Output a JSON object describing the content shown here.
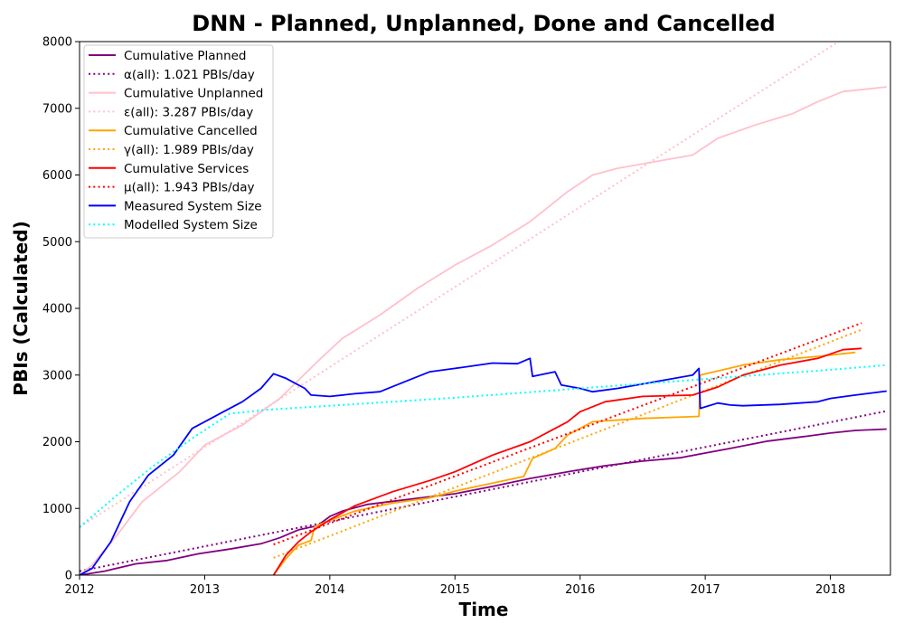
{
  "chart_data": {
    "type": "line",
    "title": "DNN - Planned, Unplanned, Done  and Cancelled",
    "xlabel": "Time",
    "ylabel": "PBIs (Calculated)",
    "xlim": [
      2012.0,
      2018.48
    ],
    "ylim": [
      0,
      8000
    ],
    "xticks": [
      2012,
      2013,
      2014,
      2015,
      2016,
      2017,
      2018
    ],
    "yticks": [
      0,
      1000,
      2000,
      3000,
      4000,
      5000,
      6000,
      7000,
      8000
    ],
    "legend_position": "top-left",
    "series": [
      {
        "name": "Cumulative Planned",
        "color": "#800080",
        "style": "solid",
        "x": [
          2012.0,
          2012.2,
          2012.45,
          2012.7,
          2012.95,
          2013.2,
          2013.45,
          2013.6,
          2013.75,
          2013.9,
          2014.0,
          2014.1,
          2014.3,
          2014.6,
          2015.0,
          2015.3,
          2015.6,
          2015.9,
          2016.2,
          2016.5,
          2016.8,
          2017.0,
          2017.2,
          2017.5,
          2017.8,
          2018.0,
          2018.2,
          2018.45
        ],
        "y": [
          0,
          60,
          170,
          220,
          320,
          390,
          470,
          560,
          680,
          740,
          880,
          960,
          1060,
          1130,
          1220,
          1330,
          1450,
          1550,
          1640,
          1710,
          1760,
          1830,
          1900,
          2010,
          2080,
          2130,
          2170,
          2190
        ]
      },
      {
        "name": "α(all): 1.021 PBIs/day",
        "color": "#800080",
        "style": "dotted",
        "x": [
          2012.0,
          2018.45
        ],
        "y": [
          60,
          2460
        ]
      },
      {
        "name": "Cumulative Unplanned",
        "color": "#ffc0cb",
        "style": "solid",
        "x": [
          2012.0,
          2012.1,
          2012.3,
          2012.5,
          2012.8,
          2013.0,
          2013.3,
          2013.6,
          2013.9,
          2014.1,
          2014.4,
          2014.7,
          2015.0,
          2015.3,
          2015.6,
          2015.9,
          2016.1,
          2016.3,
          2016.6,
          2016.9,
          2017.1,
          2017.4,
          2017.7,
          2017.9,
          2018.1,
          2018.45
        ],
        "y": [
          0,
          150,
          600,
          1100,
          1550,
          1950,
          2250,
          2650,
          3200,
          3550,
          3900,
          4300,
          4650,
          4950,
          5300,
          5750,
          6000,
          6100,
          6200,
          6300,
          6550,
          6750,
          6920,
          7100,
          7250,
          7320
        ]
      },
      {
        "name": "ε(all): 3.287 PBIs/day",
        "color": "#ffc0cb",
        "style": "dotted",
        "x": [
          2012.0,
          2018.15
        ],
        "y": [
          720,
          8100
        ]
      },
      {
        "name": "Cumulative Cancelled",
        "color": "#ffa500",
        "style": "solid",
        "x": [
          2013.55,
          2013.65,
          2013.75,
          2013.85,
          2013.88,
          2014.0,
          2014.2,
          2014.5,
          2014.8,
          2015.0,
          2015.3,
          2015.55,
          2015.62,
          2015.8,
          2015.9,
          2016.1,
          2016.5,
          2016.95,
          2016.96,
          2017.1,
          2017.3,
          2017.6,
          2017.9,
          2018.2
        ],
        "y": [
          0,
          250,
          450,
          520,
          730,
          820,
          960,
          1080,
          1160,
          1260,
          1380,
          1480,
          1750,
          1900,
          2100,
          2300,
          2350,
          2380,
          3000,
          3060,
          3150,
          3230,
          3280,
          3340
        ]
      },
      {
        "name": "γ(all): 1.989 PBIs/day",
        "color": "#ffa500",
        "style": "dotted",
        "x": [
          2013.55,
          2018.25
        ],
        "y": [
          260,
          3680
        ]
      },
      {
        "name": "Cumulative Services",
        "color": "#ff0000",
        "style": "solid",
        "x": [
          2013.55,
          2013.65,
          2013.75,
          2013.85,
          2014.0,
          2014.2,
          2014.5,
          2014.8,
          2015.0,
          2015.3,
          2015.6,
          2015.75,
          2015.9,
          2016.0,
          2016.2,
          2016.5,
          2016.9,
          2017.1,
          2017.3,
          2017.6,
          2017.9,
          2018.1,
          2018.25
        ],
        "y": [
          0,
          300,
          500,
          650,
          830,
          1040,
          1250,
          1420,
          1550,
          1800,
          2000,
          2150,
          2300,
          2450,
          2600,
          2680,
          2700,
          2820,
          3000,
          3150,
          3250,
          3380,
          3400
        ]
      },
      {
        "name": "μ(all): 1.943 PBIs/day",
        "color": "#ff0000",
        "style": "dotted",
        "x": [
          2013.55,
          2018.25
        ],
        "y": [
          460,
          3780
        ]
      },
      {
        "name": "Measured System Size",
        "color": "#0000ff",
        "style": "solid",
        "x": [
          2012.0,
          2012.1,
          2012.25,
          2012.4,
          2012.55,
          2012.75,
          2012.9,
          2013.0,
          2013.15,
          2013.3,
          2013.45,
          2013.55,
          2013.65,
          2013.8,
          2013.85,
          2014.0,
          2014.2,
          2014.4,
          2014.6,
          2014.8,
          2015.0,
          2015.3,
          2015.5,
          2015.6,
          2015.62,
          2015.8,
          2015.85,
          2016.0,
          2016.1,
          2016.3,
          2016.6,
          2016.9,
          2016.95,
          2016.96,
          2017.1,
          2017.2,
          2017.3,
          2017.6,
          2017.9,
          2018.0,
          2018.2,
          2018.45
        ],
        "y": [
          0,
          100,
          500,
          1100,
          1500,
          1800,
          2200,
          2300,
          2450,
          2600,
          2800,
          3020,
          2950,
          2800,
          2700,
          2680,
          2720,
          2750,
          2900,
          3050,
          3100,
          3180,
          3170,
          3250,
          2980,
          3050,
          2850,
          2800,
          2750,
          2800,
          2900,
          3000,
          3100,
          2500,
          2580,
          2550,
          2540,
          2560,
          2600,
          2650,
          2700,
          2760
        ]
      },
      {
        "name": "Modelled System Size",
        "color": "#00ffff",
        "style": "dotted",
        "x": [
          2012.0,
          2012.3,
          2012.6,
          2012.9,
          2013.2,
          2013.5,
          2014.0,
          2014.5,
          2015.0,
          2015.5,
          2016.0,
          2016.5,
          2017.0,
          2017.5,
          2018.0,
          2018.45
        ],
        "y": [
          720,
          1200,
          1650,
          2050,
          2420,
          2480,
          2540,
          2600,
          2660,
          2730,
          2800,
          2870,
          2940,
          3010,
          3080,
          3150
        ]
      }
    ]
  }
}
